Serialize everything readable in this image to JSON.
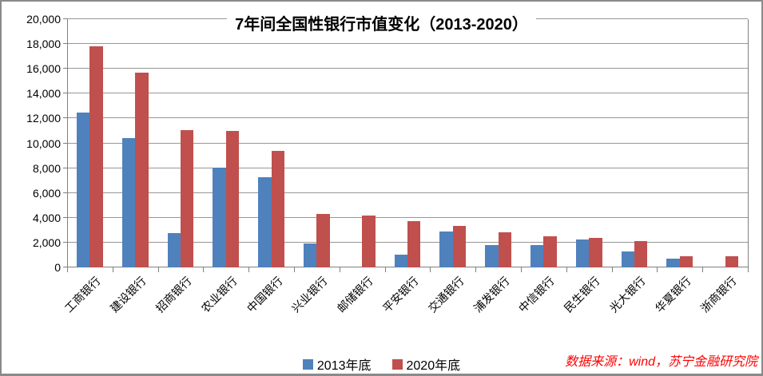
{
  "source_note": "数据来源：wind，苏宁金融研究院",
  "colors": {
    "series_2013": "#4F81BD",
    "series_2020": "#C0504D",
    "gridline": "#979797",
    "axis": "#808080",
    "source_note_text": "#FF0000",
    "frame_border": "#8A8A8A"
  },
  "chart_data": {
    "type": "bar",
    "title": "7年间全国性银行市值变化（2013-2020）",
    "categories": [
      "工商银行",
      "建设银行",
      "招商银行",
      "农业银行",
      "中国银行",
      "兴业银行",
      "邮储银行",
      "平安银行",
      "交通银行",
      "浦发银行",
      "中信银行",
      "民生银行",
      "光大银行",
      "华夏银行",
      "浙商银行"
    ],
    "series": [
      {
        "name": "2013年底",
        "color": "#4F81BD",
        "values": [
          12500,
          10400,
          2750,
          8050,
          7300,
          1950,
          null,
          1000,
          2900,
          1800,
          1800,
          2250,
          1300,
          700,
          null
        ]
      },
      {
        "name": "2020年底",
        "color": "#C0504D",
        "values": [
          17800,
          15700,
          11050,
          11000,
          9400,
          4300,
          4150,
          3700,
          3350,
          2850,
          2500,
          2350,
          2150,
          900,
          870
        ]
      }
    ],
    "xlabel": "",
    "ylabel": "",
    "ylim": [
      0,
      20000
    ],
    "ytick_step": 2000,
    "ytick_labels": [
      "0",
      "2,000",
      "4,000",
      "6,000",
      "8,000",
      "10,000",
      "12,000",
      "14,000",
      "16,000",
      "18,000",
      "20,000"
    ],
    "grid": true,
    "legend_position": "bottom",
    "x_label_rotation_deg": 45
  },
  "legend": {
    "items": [
      {
        "label": "2013年底",
        "color": "#4F81BD"
      },
      {
        "label": "2020年底",
        "color": "#C0504D"
      }
    ]
  }
}
